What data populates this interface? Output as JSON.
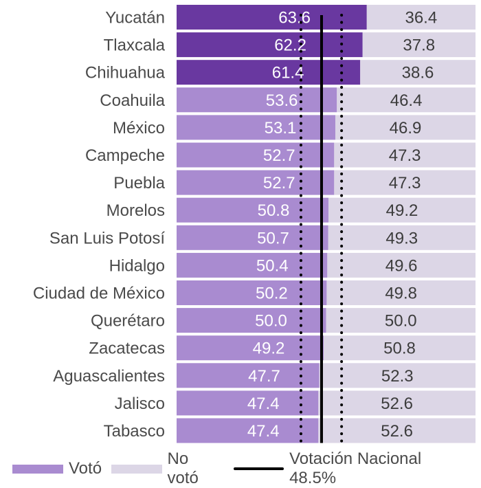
{
  "chart_data": {
    "type": "bar",
    "orientation": "horizontal",
    "stacked": true,
    "title": "",
    "xlabel": "",
    "ylabel": "",
    "xlim": [
      0,
      100
    ],
    "grid": false,
    "categories": [
      "Yucatán",
      "Tlaxcala",
      "Chihuahua",
      "Coahuila",
      "México",
      "Campeche",
      "Puebla",
      "Morelos",
      "San Luis Potosí",
      "Hidalgo",
      "Ciudad de México",
      "Querétaro",
      "Zacatecas",
      "Aguascalientes",
      "Jalisco",
      "Tabasco"
    ],
    "series": [
      {
        "name": "Votó",
        "color": "#a98bd0",
        "highlight_color": "#6938a0",
        "values": [
          63.6,
          62.2,
          61.4,
          53.6,
          53.1,
          52.7,
          52.7,
          50.8,
          50.7,
          50.4,
          50.2,
          50.0,
          49.2,
          47.7,
          47.4,
          47.4
        ],
        "labels": [
          "63.6",
          "62.2",
          "61.4",
          "53.6",
          "53.1",
          "52.7",
          "52.7",
          "50.8",
          "50.7",
          "50.4",
          "50.2",
          "50.0",
          "49.2",
          "47.7",
          "47.4",
          "47.4"
        ]
      },
      {
        "name": "No votó",
        "color": "#dcd6e6",
        "values": [
          36.4,
          37.8,
          38.6,
          46.4,
          46.9,
          47.3,
          47.3,
          49.2,
          49.3,
          49.6,
          49.8,
          50.0,
          50.8,
          52.3,
          52.6,
          52.6
        ],
        "labels": [
          "36.4",
          "37.8",
          "38.6",
          "46.4",
          "46.9",
          "47.3",
          "47.3",
          "49.2",
          "49.3",
          "49.6",
          "49.8",
          "50.0",
          "50.8",
          "52.3",
          "52.6",
          "52.6"
        ]
      }
    ],
    "highlighted_categories": [
      "Yucatán",
      "Tlaxcala",
      "Chihuahua"
    ],
    "reference_lines": [
      {
        "name": "Votación Nacional",
        "value": 48.5,
        "style": "solid",
        "color": "#000000"
      },
      {
        "name": "lower-bound",
        "value": 41.6,
        "style": "dotted",
        "color": "#000000"
      },
      {
        "name": "upper-bound",
        "value": 55.2,
        "style": "dotted",
        "color": "#000000"
      }
    ],
    "legend": {
      "position": "bottom",
      "entries": [
        {
          "label": "Votó",
          "kind": "swatch",
          "color": "#a98bd0"
        },
        {
          "label": "No votó",
          "kind": "swatch",
          "color": "#dcd6e6"
        },
        {
          "label": "Votación Nacional 48.5%",
          "kind": "line",
          "color": "#000000"
        }
      ]
    }
  }
}
